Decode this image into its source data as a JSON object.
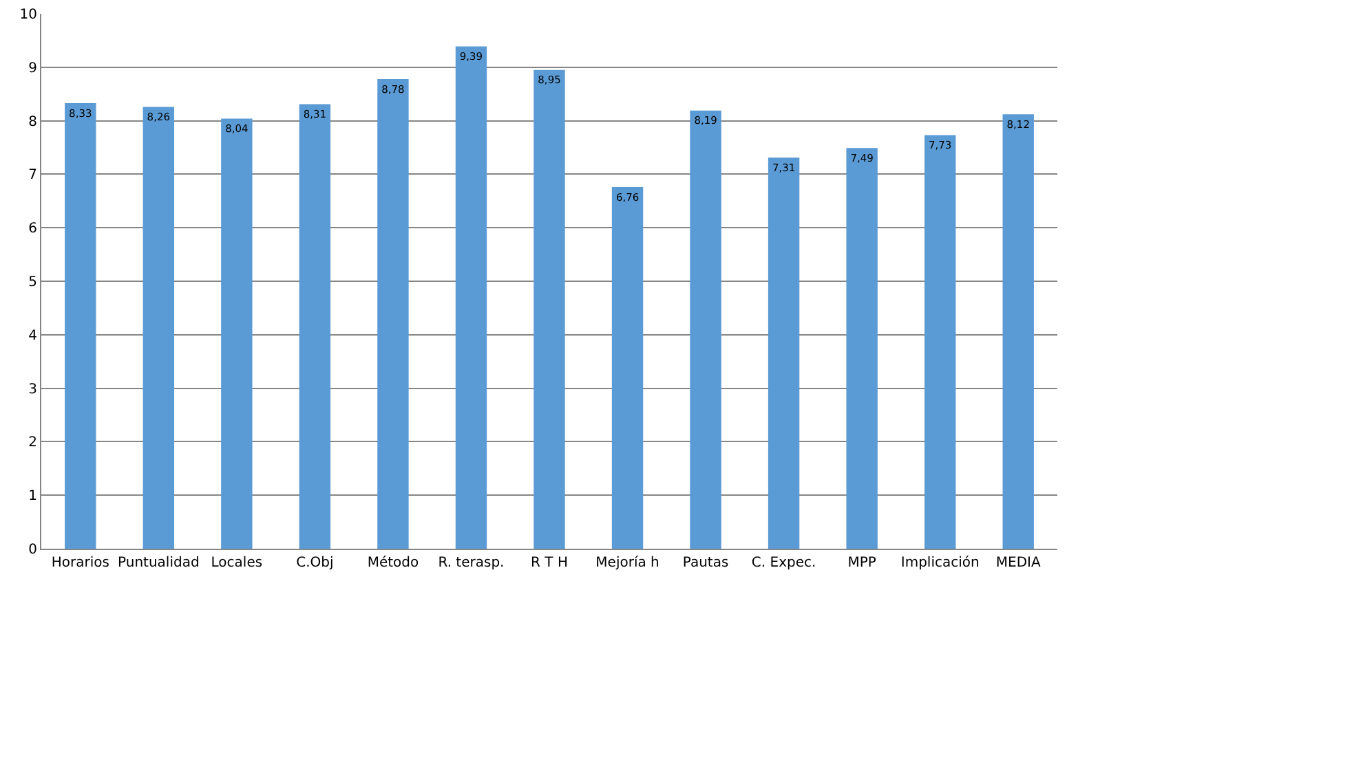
{
  "chart_data": {
    "type": "bar",
    "categories": [
      "Horarios",
      "Puntualidad",
      "Locales",
      "C.Obj",
      "Método",
      "R. terasp.",
      "R T H",
      "Mejoría h",
      "Pautas",
      "C. Expec.",
      "MPP",
      "Implicación",
      "MEDIA"
    ],
    "values": [
      8.33,
      8.26,
      8.04,
      8.31,
      8.78,
      9.39,
      8.95,
      6.76,
      8.19,
      7.31,
      7.49,
      7.73,
      8.12
    ],
    "value_labels": [
      "8,33",
      "8,26",
      "8,04",
      "8,31",
      "8,78",
      "9,39",
      "8,95",
      "6,76",
      "8,19",
      "7,31",
      "7,49",
      "7,73",
      "8,12"
    ],
    "color": "#5b9bd5",
    "ylim": [
      0,
      10
    ],
    "yticks": [
      0,
      1,
      2,
      3,
      4,
      5,
      6,
      7,
      8,
      9,
      10
    ],
    "grid": true,
    "legend": false
  }
}
